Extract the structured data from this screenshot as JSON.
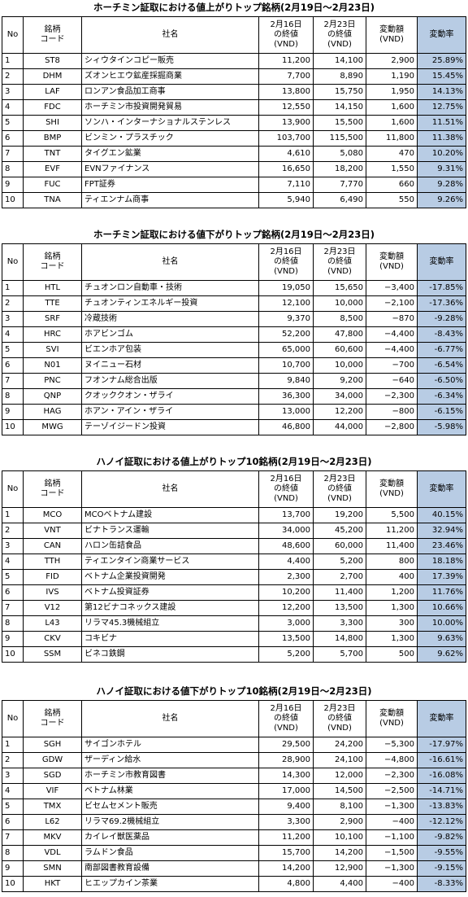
{
  "tables": [
    {
      "title": "ホーチミン証取における値上がりトップ銘柄(2月19日～2月23日)",
      "headers": [
        [
          "No"
        ],
        [
          "銘柄",
          "コード"
        ],
        [
          "社名"
        ],
        [
          "2月16日",
          "の終値",
          "(VND)"
        ],
        [
          "2月23日",
          "の終値",
          "(VND)"
        ],
        [
          "変動額",
          "(VND)"
        ],
        [
          "変動率"
        ]
      ],
      "rows": [
        [
          "1",
          "ST8",
          "シィウタインコピー販売",
          "11,200",
          "14,100",
          "2,900",
          "25.89%"
        ],
        [
          "2",
          "DHM",
          "ズオンヒエウ鉱産採掘商業",
          "7,700",
          "8,890",
          "1,190",
          "15.45%"
        ],
        [
          "3",
          "LAF",
          "ロンアン食品加工商事",
          "13,800",
          "15,750",
          "1,950",
          "14.13%"
        ],
        [
          "4",
          "FDC",
          "ホーチミン市投資開発貿易",
          "12,550",
          "14,150",
          "1,600",
          "12.75%"
        ],
        [
          "5",
          "SHI",
          "ソンハ・インターナショナルステンレス",
          "13,900",
          "15,500",
          "1,600",
          "11.51%"
        ],
        [
          "6",
          "BMP",
          "ビンミン・プラスチック",
          "103,700",
          "115,500",
          "11,800",
          "11.38%"
        ],
        [
          "7",
          "TNT",
          "タイグエン鉱業",
          "4,610",
          "5,080",
          "470",
          "10.20%"
        ],
        [
          "8",
          "EVF",
          "EVNファイナンス",
          "16,650",
          "18,200",
          "1,550",
          "9.31%"
        ],
        [
          "9",
          "FUC",
          "FPT証券",
          "7,110",
          "7,770",
          "660",
          "9.28%"
        ],
        [
          "10",
          "TNA",
          "ティエンナム商事",
          "5,940",
          "6,490",
          "550",
          "9.26%"
        ]
      ]
    },
    {
      "title": "ホーチミン証取における値下がりトップ銘柄(2月19日～2月23日)",
      "headers": [
        [
          "No"
        ],
        [
          "銘柄",
          "コード"
        ],
        [
          "社名"
        ],
        [
          "2月16日",
          "の終値",
          "(VND)"
        ],
        [
          "2月23日",
          "の終値",
          "(VND)"
        ],
        [
          "変動額",
          "(VND)"
        ],
        [
          "変動率"
        ]
      ],
      "rows": [
        [
          "1",
          "HTL",
          "チュオンロン自動車・技術",
          "19,050",
          "15,650",
          "−3,400",
          "-17.85%"
        ],
        [
          "2",
          "TTE",
          "チュオンティンエネルギー投資",
          "12,100",
          "10,000",
          "−2,100",
          "-17.36%"
        ],
        [
          "3",
          "SRF",
          "冷蔵技術",
          "9,370",
          "8,500",
          "−870",
          "-9.28%"
        ],
        [
          "4",
          "HRC",
          "ホアビンゴム",
          "52,200",
          "47,800",
          "−4,400",
          "-8.43%"
        ],
        [
          "5",
          "SVI",
          "ビエンホア包装",
          "65,000",
          "60,600",
          "−4,400",
          "-6.77%"
        ],
        [
          "6",
          "N01",
          "ヌイニュー石材",
          "10,700",
          "10,000",
          "−700",
          "-6.54%"
        ],
        [
          "7",
          "PNC",
          "フオンナム総合出版",
          "9,840",
          "9,200",
          "−640",
          "-6.50%"
        ],
        [
          "8",
          "QNP",
          "クオッククオン・ザライ",
          "36,300",
          "34,000",
          "−2,300",
          "-6.34%"
        ],
        [
          "9",
          "HAG",
          "ホアン・アイン・ザライ",
          "13,000",
          "12,200",
          "−800",
          "-6.15%"
        ],
        [
          "10",
          "MWG",
          "テーゾイジードン投資",
          "46,800",
          "44,000",
          "−2,800",
          "-5.98%"
        ]
      ]
    },
    {
      "title": "ハノイ証取における値上がりトップ10銘柄(2月19日～2月23日)",
      "headers": [
        [
          "No"
        ],
        [
          "銘柄",
          "コード"
        ],
        [
          "社名"
        ],
        [
          "2月16日",
          "の終値",
          "(VND)"
        ],
        [
          "2月23日",
          "の終値",
          "(VND)"
        ],
        [
          "変動額",
          "(VND)"
        ],
        [
          "変動率"
        ]
      ],
      "rows": [
        [
          "1",
          "MCO",
          "MCOベトナム建設",
          "13,700",
          "19,200",
          "5,500",
          "40.15%"
        ],
        [
          "2",
          "VNT",
          "ビナトランス運輸",
          "34,000",
          "45,200",
          "11,200",
          "32.94%"
        ],
        [
          "3",
          "CAN",
          "ハロン缶詰食品",
          "48,600",
          "60,000",
          "11,400",
          "23.46%"
        ],
        [
          "4",
          "TTH",
          "ティエンタイン商業サービス",
          "4,400",
          "5,200",
          "800",
          "18.18%"
        ],
        [
          "5",
          "FID",
          "ベトナム企業投資開発",
          "2,300",
          "2,700",
          "400",
          "17.39%"
        ],
        [
          "6",
          "IVS",
          "ベトナム投資証券",
          "10,200",
          "11,400",
          "1,200",
          "11.76%"
        ],
        [
          "7",
          "V12",
          "第12ビナコネックス建設",
          "12,200",
          "13,500",
          "1,300",
          "10.66%"
        ],
        [
          "8",
          "L43",
          "リラマ45.3機械組立",
          "3,000",
          "3,300",
          "300",
          "10.00%"
        ],
        [
          "9",
          "CKV",
          "コキビナ",
          "13,500",
          "14,800",
          "1,300",
          "9.63%"
        ],
        [
          "10",
          "SSM",
          "ビネコ鉄鋼",
          "5,200",
          "5,700",
          "500",
          "9.62%"
        ]
      ]
    },
    {
      "title": "ハノイ証取における値下がりトップ10銘柄(2月19日～2月23日)",
      "headers": [
        [
          "No"
        ],
        [
          "銘柄",
          "コード"
        ],
        [
          "社名"
        ],
        [
          "2月16日",
          "の終値",
          "(VND)"
        ],
        [
          "2月23日",
          "の終値",
          "(VND)"
        ],
        [
          "変動額",
          "(VND)"
        ],
        [
          "変動率"
        ]
      ],
      "rows": [
        [
          "1",
          "SGH",
          "サイゴンホテル",
          "29,500",
          "24,200",
          "−5,300",
          "-17.97%"
        ],
        [
          "2",
          "GDW",
          "ザーディン給水",
          "28,900",
          "24,100",
          "−4,800",
          "-16.61%"
        ],
        [
          "3",
          "SGD",
          "ホーチミン市教育図書",
          "14,300",
          "12,000",
          "−2,300",
          "-16.08%"
        ],
        [
          "4",
          "VIF",
          "ベトナム林業",
          "17,000",
          "14,500",
          "−2,500",
          "-14.71%"
        ],
        [
          "5",
          "TMX",
          "ビセムセメント販売",
          "9,400",
          "8,100",
          "−1,300",
          "-13.83%"
        ],
        [
          "6",
          "L62",
          "リラマ69.2機械組立",
          "3,300",
          "2,900",
          "−400",
          "-12.12%"
        ],
        [
          "7",
          "MKV",
          "カイレイ獣医薬品",
          "11,200",
          "10,100",
          "−1,100",
          "-9.82%"
        ],
        [
          "8",
          "VDL",
          "ラムドン食品",
          "15,700",
          "14,200",
          "−1,500",
          "-9.55%"
        ],
        [
          "9",
          "SMN",
          "南部図書教育設備",
          "14,200",
          "12,900",
          "−1,300",
          "-9.15%"
        ],
        [
          "10",
          "HKT",
          "ヒエップカイン茶業",
          "4,800",
          "4,400",
          "−400",
          "-8.33%"
        ]
      ]
    }
  ]
}
